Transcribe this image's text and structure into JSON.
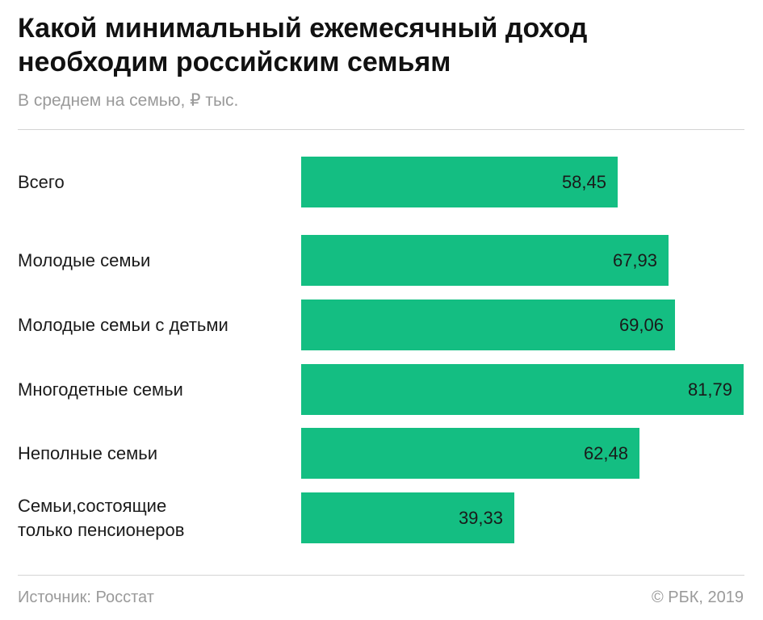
{
  "chart_data": {
    "type": "bar",
    "orientation": "horizontal",
    "title": "Какой минимальный ежемесячный доход необходим российским семьям",
    "subtitle": "В среднем на семью, ₽ тыс.",
    "categories": [
      "Всего",
      "Молодые семьи",
      "Молодые семьи с детьми",
      "Многодетные семьи",
      "Неполные семьи",
      "Семьи,состоящие\nтолько пенсионеров"
    ],
    "values": [
      58.45,
      67.93,
      69.06,
      81.79,
      62.48,
      39.33
    ],
    "value_labels": [
      "58,45",
      "67,93",
      "69,06",
      "81,79",
      "62,48",
      "39,33"
    ],
    "xlim": [
      0,
      81.79
    ],
    "grid": false,
    "legend": "none",
    "bar_color": "#14be82"
  },
  "footer": {
    "source": "Источник: Росстат",
    "copyright": "© РБК, 2019"
  }
}
